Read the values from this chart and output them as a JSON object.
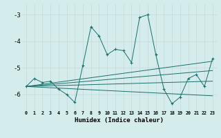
{
  "background_color": "#d5ecec",
  "grid_color": "#c8d8d8",
  "line_color": "#1a6e6a",
  "xlabel": "Humidex (Indice chaleur)",
  "xlim": [
    -0.5,
    23.5
  ],
  "ylim": [
    -6.6,
    -2.6
  ],
  "yticks": [
    -3,
    -4,
    -5,
    -6
  ],
  "xticks": [
    0,
    1,
    2,
    3,
    4,
    5,
    6,
    7,
    8,
    9,
    10,
    11,
    12,
    13,
    14,
    15,
    16,
    17,
    18,
    19,
    20,
    21,
    22,
    23
  ],
  "main_x": [
    0,
    1,
    2,
    3,
    4,
    5,
    6,
    7,
    8,
    9,
    10,
    11,
    12,
    13,
    14,
    15,
    16,
    17,
    18,
    19,
    20,
    21,
    22,
    23
  ],
  "main_y": [
    -5.7,
    -5.4,
    -5.55,
    -5.5,
    -5.8,
    -6.0,
    -6.3,
    -4.9,
    -3.45,
    -3.8,
    -4.5,
    -4.3,
    -4.35,
    -4.8,
    -3.1,
    -3.0,
    -4.5,
    -5.8,
    -6.35,
    -6.1,
    -5.4,
    -5.25,
    -5.7,
    -4.65
  ],
  "trend_lines": [
    {
      "x": [
        0,
        23
      ],
      "y": [
        -5.7,
        -4.75
      ]
    },
    {
      "x": [
        0,
        23
      ],
      "y": [
        -5.7,
        -5.1
      ]
    },
    {
      "x": [
        0,
        23
      ],
      "y": [
        -5.7,
        -5.5
      ]
    },
    {
      "x": [
        0,
        23
      ],
      "y": [
        -5.7,
        -6.05
      ]
    }
  ]
}
